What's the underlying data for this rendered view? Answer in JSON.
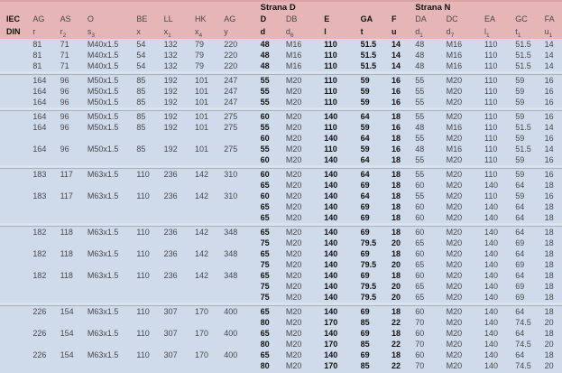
{
  "colors": {
    "header_bg": "#e6b6b6",
    "header_top": "#d8a4a4",
    "body_bg": "#cfdbea",
    "sep_band": "#d9e2ef",
    "separator_line": "#a8b0bc",
    "text": "#474747",
    "text_bold": "#121212"
  },
  "header": {
    "group_d": "Strana D",
    "group_n": "Strana N",
    "columns": [
      {
        "main": "IEC",
        "sub": "DIN",
        "subscript": "",
        "bold": true
      },
      {
        "main": "AG",
        "sub": "r",
        "subscript": ""
      },
      {
        "main": "AS",
        "sub": "r",
        "subscript": "2"
      },
      {
        "main": "O",
        "sub": "s",
        "subscript": "3"
      },
      {
        "main": "BE",
        "sub": "x",
        "subscript": ""
      },
      {
        "main": "LL",
        "sub": "x",
        "subscript": "1"
      },
      {
        "main": "HK",
        "sub": "x",
        "subscript": "4"
      },
      {
        "main": "AG",
        "sub": "y",
        "subscript": ""
      },
      {
        "main": "D",
        "sub": "d",
        "subscript": "",
        "bold": true
      },
      {
        "main": "DB",
        "sub": "d",
        "subscript": "6"
      },
      {
        "main": "E",
        "sub": "l",
        "subscript": "",
        "bold": true
      },
      {
        "main": "GA",
        "sub": "t",
        "subscript": "",
        "bold": true
      },
      {
        "main": "F",
        "sub": "u",
        "subscript": "",
        "bold": true
      },
      {
        "main": "DA",
        "sub": "d",
        "subscript": "1"
      },
      {
        "main": "DC",
        "sub": "d",
        "subscript": "7"
      },
      {
        "main": "EA",
        "sub": "l",
        "subscript": "1"
      },
      {
        "main": "GC",
        "sub": "t",
        "subscript": "1"
      },
      {
        "main": "FA",
        "sub": "u",
        "subscript": "1"
      }
    ]
  },
  "bold_value_columns": [
    7,
    9,
    10,
    11
  ],
  "groups": [
    [
      [
        "81",
        "71",
        "M40x1.5",
        "54",
        "132",
        "79",
        "220",
        "48",
        "M16",
        "110",
        "51.5",
        "14",
        "48",
        "M16",
        "110",
        "51.5",
        "14"
      ],
      [
        "81",
        "71",
        "M40x1.5",
        "54",
        "132",
        "79",
        "220",
        "48",
        "M16",
        "110",
        "51.5",
        "14",
        "48",
        "M16",
        "110",
        "51.5",
        "14"
      ],
      [
        "81",
        "71",
        "M40x1.5",
        "54",
        "132",
        "79",
        "220",
        "48",
        "M16",
        "110",
        "51.5",
        "14",
        "48",
        "M16",
        "110",
        "51.5",
        "14"
      ]
    ],
    [
      [
        "164",
        "96",
        "M50x1.5",
        "85",
        "192",
        "101",
        "247",
        "55",
        "M20",
        "110",
        "59",
        "16",
        "55",
        "M20",
        "110",
        "59",
        "16"
      ],
      [
        "164",
        "96",
        "M50x1.5",
        "85",
        "192",
        "101",
        "247",
        "55",
        "M20",
        "110",
        "59",
        "16",
        "55",
        "M20",
        "110",
        "59",
        "16"
      ],
      [
        "164",
        "96",
        "M50x1.5",
        "85",
        "192",
        "101",
        "247",
        "55",
        "M20",
        "110",
        "59",
        "16",
        "55",
        "M20",
        "110",
        "59",
        "16"
      ]
    ],
    [
      [
        "164",
        "96",
        "M50x1.5",
        "85",
        "192",
        "101",
        "275",
        "60",
        "M20",
        "140",
        "64",
        "18",
        "55",
        "M20",
        "110",
        "59",
        "16"
      ],
      [
        "164",
        "96",
        "M50x1.5",
        "85",
        "192",
        "101",
        "275",
        "55",
        "M20",
        "110",
        "59",
        "16",
        "48",
        "M16",
        "110",
        "51.5",
        "14"
      ],
      [
        "",
        "",
        "",
        "",
        "",
        "",
        "",
        "60",
        "M20",
        "140",
        "64",
        "18",
        "55",
        "M20",
        "110",
        "59",
        "16"
      ],
      [
        "164",
        "96",
        "M50x1.5",
        "85",
        "192",
        "101",
        "275",
        "55",
        "M20",
        "110",
        "59",
        "16",
        "48",
        "M16",
        "110",
        "51.5",
        "14"
      ],
      [
        "",
        "",
        "",
        "",
        "",
        "",
        "",
        "60",
        "M20",
        "140",
        "64",
        "18",
        "55",
        "M20",
        "110",
        "59",
        "16"
      ]
    ],
    [
      [
        "183",
        "117",
        "M63x1.5",
        "110",
        "236",
        "142",
        "310",
        "60",
        "M20",
        "140",
        "64",
        "18",
        "55",
        "M20",
        "110",
        "59",
        "16"
      ],
      [
        "",
        "",
        "",
        "",
        "",
        "",
        "",
        "65",
        "M20",
        "140",
        "69",
        "18",
        "60",
        "M20",
        "140",
        "64",
        "18"
      ],
      [
        "183",
        "117",
        "M63x1.5",
        "110",
        "236",
        "142",
        "310",
        "60",
        "M20",
        "140",
        "64",
        "18",
        "55",
        "M20",
        "110",
        "59",
        "16"
      ],
      [
        "",
        "",
        "",
        "",
        "",
        "",
        "",
        "65",
        "M20",
        "140",
        "69",
        "18",
        "60",
        "M20",
        "140",
        "64",
        "18"
      ],
      [
        "",
        "",
        "",
        "",
        "",
        "",
        "",
        "65",
        "M20",
        "140",
        "69",
        "18",
        "60",
        "M20",
        "140",
        "64",
        "18"
      ]
    ],
    [
      [
        "182",
        "118",
        "M63x1.5",
        "110",
        "236",
        "142",
        "348",
        "65",
        "M20",
        "140",
        "69",
        "18",
        "60",
        "M20",
        "140",
        "64",
        "18"
      ],
      [
        "",
        "",
        "",
        "",
        "",
        "",
        "",
        "75",
        "M20",
        "140",
        "79.5",
        "20",
        "65",
        "M20",
        "140",
        "69",
        "18"
      ],
      [
        "182",
        "118",
        "M63x1.5",
        "110",
        "236",
        "142",
        "348",
        "65",
        "M20",
        "140",
        "69",
        "18",
        "60",
        "M20",
        "140",
        "64",
        "18"
      ],
      [
        "",
        "",
        "",
        "",
        "",
        "",
        "",
        "75",
        "M20",
        "140",
        "79.5",
        "20",
        "65",
        "M20",
        "140",
        "69",
        "18"
      ],
      [
        "182",
        "118",
        "M63x1.5",
        "110",
        "236",
        "142",
        "348",
        "65",
        "M20",
        "140",
        "69",
        "18",
        "60",
        "M20",
        "140",
        "64",
        "18"
      ],
      [
        "",
        "",
        "",
        "",
        "",
        "",
        "",
        "75",
        "M20",
        "140",
        "79.5",
        "20",
        "65",
        "M20",
        "140",
        "69",
        "18"
      ],
      [
        "",
        "",
        "",
        "",
        "",
        "",
        "",
        "75",
        "M20",
        "140",
        "79.5",
        "20",
        "65",
        "M20",
        "140",
        "69",
        "18"
      ]
    ],
    [
      [
        "226",
        "154",
        "M63x1.5",
        "110",
        "307",
        "170",
        "400",
        "65",
        "M20",
        "140",
        "69",
        "18",
        "60",
        "M20",
        "140",
        "64",
        "18"
      ],
      [
        "",
        "",
        "",
        "",
        "",
        "",
        "",
        "80",
        "M20",
        "170",
        "85",
        "22",
        "70",
        "M20",
        "140",
        "74.5",
        "20"
      ],
      [
        "226",
        "154",
        "M63x1.5",
        "110",
        "307",
        "170",
        "400",
        "65",
        "M20",
        "140",
        "69",
        "18",
        "60",
        "M20",
        "140",
        "64",
        "18"
      ],
      [
        "",
        "",
        "",
        "",
        "",
        "",
        "",
        "80",
        "M20",
        "170",
        "85",
        "22",
        "70",
        "M20",
        "140",
        "74.5",
        "20"
      ],
      [
        "226",
        "154",
        "M63x1.5",
        "110",
        "307",
        "170",
        "400",
        "65",
        "M20",
        "140",
        "69",
        "18",
        "60",
        "M20",
        "140",
        "64",
        "18"
      ],
      [
        "",
        "",
        "",
        "",
        "",
        "",
        "",
        "80",
        "M20",
        "170",
        "85",
        "22",
        "70",
        "M20",
        "140",
        "74.5",
        "20"
      ]
    ]
  ]
}
